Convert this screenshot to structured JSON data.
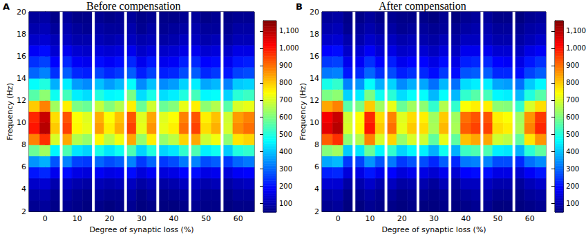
{
  "chart_data": [
    {
      "type": "heatmap",
      "title": "Before compensation",
      "annotations": [
        "A"
      ],
      "x_label": "Degree of synaptic loss (%)",
      "y_label": "Frequency (Hz)",
      "xlim": [
        -5,
        65
      ],
      "xticks": [
        0,
        10,
        20,
        30,
        40,
        50,
        60
      ],
      "ylim": [
        2,
        20
      ],
      "yticks": [
        2,
        4,
        6,
        8,
        10,
        12,
        14,
        16,
        18,
        20
      ],
      "x": [
        -3.33,
        0,
        3.33,
        6.67,
        10,
        13.33,
        16.67,
        20,
        23.33,
        26.67,
        30,
        33.33,
        36.67,
        40,
        43.33,
        46.67,
        50,
        53.33,
        56.67,
        60,
        63.33
      ],
      "y": [
        2.5,
        3.5,
        4.5,
        5.5,
        6.5,
        7.5,
        8.5,
        9.5,
        10.5,
        11.5,
        12.5,
        13.5,
        14.5,
        15.5,
        16.5,
        17.5,
        18.5,
        19.5
      ],
      "cells": [
        [
          70,
          80,
          60,
          70,
          60,
          50,
          60,
          50,
          60,
          70,
          50,
          60,
          50,
          50,
          60,
          70,
          60,
          60,
          50,
          60,
          60
        ],
        [
          90,
          100,
          70,
          90,
          70,
          60,
          80,
          70,
          70,
          90,
          60,
          80,
          60,
          70,
          80,
          90,
          70,
          70,
          60,
          80,
          80
        ],
        [
          130,
          140,
          100,
          120,
          100,
          90,
          110,
          100,
          110,
          120,
          90,
          110,
          90,
          100,
          120,
          120,
          100,
          110,
          90,
          110,
          120
        ],
        [
          210,
          230,
          170,
          200,
          160,
          150,
          180,
          160,
          170,
          200,
          150,
          180,
          150,
          160,
          190,
          200,
          160,
          170,
          150,
          180,
          190
        ],
        [
          350,
          380,
          280,
          330,
          260,
          250,
          300,
          270,
          290,
          330,
          250,
          300,
          250,
          270,
          320,
          330,
          270,
          290,
          250,
          300,
          320
        ],
        [
          580,
          640,
          460,
          550,
          440,
          420,
          490,
          440,
          480,
          550,
          420,
          500,
          420,
          440,
          520,
          550,
          450,
          480,
          410,
          500,
          520
        ],
        [
          880,
          970,
          700,
          840,
          660,
          630,
          750,
          670,
          730,
          840,
          630,
          760,
          630,
          670,
          790,
          840,
          690,
          730,
          620,
          770,
          790
        ],
        [
          1000,
          1100,
          800,
          950,
          750,
          720,
          850,
          760,
          830,
          950,
          720,
          860,
          720,
          760,
          900,
          950,
          780,
          830,
          700,
          870,
          900
        ],
        [
          980,
          1080,
          780,
          930,
          740,
          710,
          830,
          740,
          810,
          930,
          710,
          840,
          710,
          740,
          880,
          930,
          760,
          810,
          690,
          850,
          880
        ],
        [
          800,
          880,
          640,
          760,
          600,
          580,
          680,
          610,
          660,
          760,
          580,
          690,
          580,
          610,
          720,
          760,
          620,
          660,
          560,
          700,
          720
        ],
        [
          560,
          620,
          480,
          540,
          450,
          430,
          500,
          460,
          470,
          600,
          430,
          490,
          430,
          450,
          500,
          540,
          460,
          470,
          420,
          510,
          530
        ],
        [
          470,
          500,
          380,
          450,
          360,
          340,
          400,
          360,
          390,
          470,
          340,
          400,
          340,
          360,
          420,
          450,
          370,
          390,
          330,
          410,
          420
        ],
        [
          300,
          330,
          240,
          290,
          230,
          220,
          260,
          230,
          250,
          290,
          220,
          260,
          220,
          230,
          270,
          290,
          230,
          250,
          210,
          260,
          270
        ],
        [
          240,
          260,
          190,
          230,
          180,
          170,
          200,
          180,
          200,
          230,
          170,
          210,
          170,
          180,
          220,
          230,
          190,
          200,
          170,
          210,
          220
        ],
        [
          180,
          200,
          140,
          170,
          140,
          130,
          150,
          140,
          150,
          170,
          130,
          150,
          130,
          140,
          160,
          170,
          140,
          150,
          130,
          160,
          160
        ],
        [
          130,
          140,
          110,
          120,
          100,
          100,
          110,
          100,
          110,
          120,
          100,
          110,
          90,
          100,
          120,
          120,
          100,
          110,
          90,
          110,
          110
        ],
        [
          100,
          110,
          80,
          100,
          80,
          70,
          90,
          80,
          80,
          100,
          70,
          90,
          70,
          80,
          90,
          100,
          80,
          80,
          70,
          90,
          90
        ],
        [
          80,
          90,
          60,
          80,
          60,
          60,
          70,
          60,
          70,
          80,
          60,
          70,
          60,
          60,
          70,
          80,
          60,
          70,
          60,
          70,
          70
        ]
      ],
      "colorbar": {
        "range": [
          50,
          1160
        ],
        "ticks": [
          100,
          200,
          300,
          400,
          500,
          600,
          700,
          800,
          900,
          1000,
          1100
        ]
      }
    },
    {
      "type": "heatmap",
      "title": "After compensation",
      "annotations": [
        "B"
      ],
      "x_label": "Degree of synaptic loss (%)",
      "y_label": "Frequency (Hz)",
      "xlim": [
        -5,
        65
      ],
      "xticks": [
        0,
        10,
        20,
        30,
        40,
        50,
        60
      ],
      "ylim": [
        2,
        20
      ],
      "yticks": [
        2,
        4,
        6,
        8,
        10,
        12,
        14,
        16,
        18,
        20
      ],
      "x": [
        -3.33,
        0,
        3.33,
        6.67,
        10,
        13.33,
        16.67,
        20,
        23.33,
        26.67,
        30,
        33.33,
        36.67,
        40,
        43.33,
        46.67,
        50,
        53.33,
        56.67,
        60,
        63.33
      ],
      "y": [
        2.5,
        3.5,
        4.5,
        5.5,
        6.5,
        7.5,
        8.5,
        9.5,
        10.5,
        11.5,
        12.5,
        13.5,
        14.5,
        15.5,
        16.5,
        17.5,
        18.5,
        19.5
      ],
      "cells": [
        [
          70,
          80,
          50,
          50,
          70,
          60,
          60,
          50,
          60,
          50,
          50,
          60,
          50,
          60,
          70,
          70,
          50,
          50,
          50,
          60,
          70
        ],
        [
          90,
          100,
          60,
          70,
          90,
          70,
          80,
          60,
          70,
          70,
          60,
          70,
          60,
          80,
          90,
          90,
          70,
          70,
          60,
          80,
          90
        ],
        [
          140,
          140,
          90,
          100,
          130,
          100,
          120,
          90,
          100,
          100,
          80,
          110,
          80,
          120,
          120,
          120,
          100,
          100,
          80,
          110,
          130
        ],
        [
          220,
          230,
          150,
          160,
          210,
          170,
          190,
          150,
          170,
          160,
          140,
          170,
          140,
          190,
          200,
          200,
          160,
          160,
          140,
          180,
          210
        ],
        [
          370,
          390,
          250,
          260,
          350,
          280,
          320,
          250,
          280,
          270,
          230,
          290,
          230,
          320,
          330,
          330,
          270,
          270,
          230,
          310,
          340
        ],
        [
          610,
          640,
          410,
          440,
          580,
          460,
          520,
          420,
          460,
          450,
          380,
          480,
          380,
          530,
          550,
          550,
          450,
          440,
          380,
          510,
          570
        ],
        [
          920,
          970,
          620,
          660,
          880,
          700,
          790,
          630,
          700,
          690,
          570,
          720,
          570,
          810,
          840,
          840,
          690,
          670,
          570,
          770,
          860
        ],
        [
          1050,
          1100,
          700,
          750,
          1000,
          800,
          900,
          720,
          800,
          780,
          650,
          820,
          650,
          920,
          950,
          950,
          780,
          760,
          650,
          880,
          980
        ],
        [
          1030,
          1080,
          690,
          740,
          980,
          780,
          880,
          710,
          780,
          760,
          640,
          800,
          640,
          900,
          930,
          930,
          760,
          740,
          640,
          860,
          960
        ],
        [
          840,
          880,
          560,
          600,
          800,
          640,
          720,
          580,
          640,
          620,
          520,
          660,
          520,
          740,
          760,
          760,
          620,
          610,
          520,
          700,
          780
        ],
        [
          600,
          620,
          420,
          450,
          600,
          480,
          510,
          430,
          470,
          470,
          390,
          470,
          390,
          520,
          560,
          540,
          460,
          450,
          390,
          500,
          560
        ],
        [
          490,
          520,
          330,
          350,
          470,
          380,
          420,
          340,
          380,
          370,
          310,
          390,
          310,
          430,
          450,
          450,
          370,
          360,
          310,
          410,
          460
        ],
        [
          320,
          330,
          210,
          230,
          300,
          240,
          270,
          220,
          240,
          230,
          200,
          250,
          200,
          280,
          290,
          290,
          230,
          230,
          200,
          260,
          290
        ],
        [
          250,
          260,
          170,
          180,
          240,
          190,
          220,
          170,
          190,
          190,
          160,
          200,
          160,
          220,
          230,
          230,
          190,
          180,
          160,
          210,
          240
        ],
        [
          190,
          200,
          130,
          140,
          180,
          140,
          160,
          130,
          140,
          140,
          120,
          150,
          120,
          170,
          170,
          170,
          140,
          140,
          120,
          160,
          180
        ],
        [
          130,
          140,
          100,
          100,
          130,
          110,
          120,
          100,
          110,
          100,
          90,
          110,
          90,
          120,
          120,
          120,
          100,
          100,
          90,
          110,
          130
        ],
        [
          100,
          110,
          70,
          80,
          100,
          80,
          90,
          70,
          80,
          80,
          70,
          80,
          70,
          90,
          100,
          100,
          80,
          80,
          70,
          90,
          100
        ],
        [
          80,
          90,
          60,
          60,
          80,
          60,
          70,
          60,
          60,
          60,
          50,
          70,
          50,
          70,
          80,
          80,
          60,
          60,
          50,
          70,
          80
        ]
      ],
      "colorbar": {
        "range": [
          50,
          1160
        ],
        "ticks": [
          100,
          200,
          300,
          400,
          500,
          600,
          700,
          800,
          900,
          1000,
          1100
        ]
      }
    }
  ]
}
